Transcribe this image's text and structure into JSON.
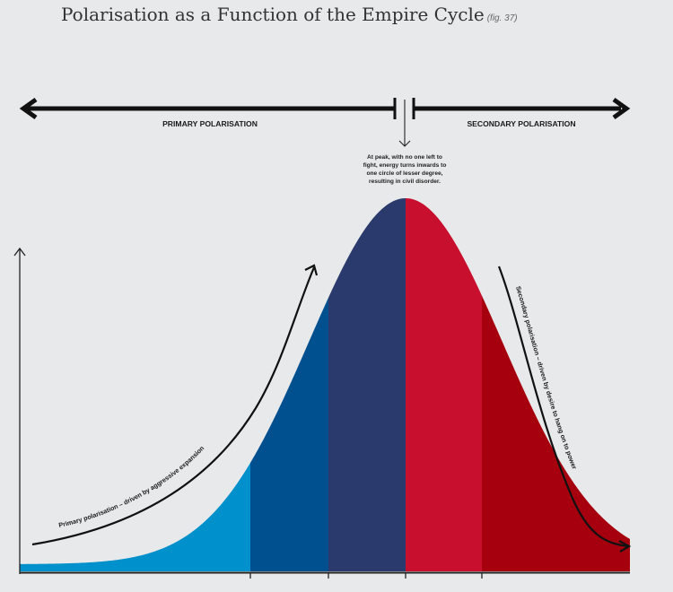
{
  "title": "Polarisation as a Function of the Empire Cycle",
  "fig_label": "(fig. 37)",
  "phases": {
    "primary": "PRIMARY POLARISATION",
    "secondary": "SECONDARY POLARISATION"
  },
  "peak_note": [
    "At peak, with no one left to",
    "fight, energy turns inwards to",
    "one circle of lesser degree,",
    "resulting in civil disorder."
  ],
  "rising_label": "Primary polarisation – driven by aggressive expansion",
  "falling_label": "Secondary polarisation – driven by desire to hang on to power",
  "segment_colors": [
    "#0091cc",
    "#004f8f",
    "#2a3a6c",
    "#c8102e",
    "#a6000f"
  ]
}
